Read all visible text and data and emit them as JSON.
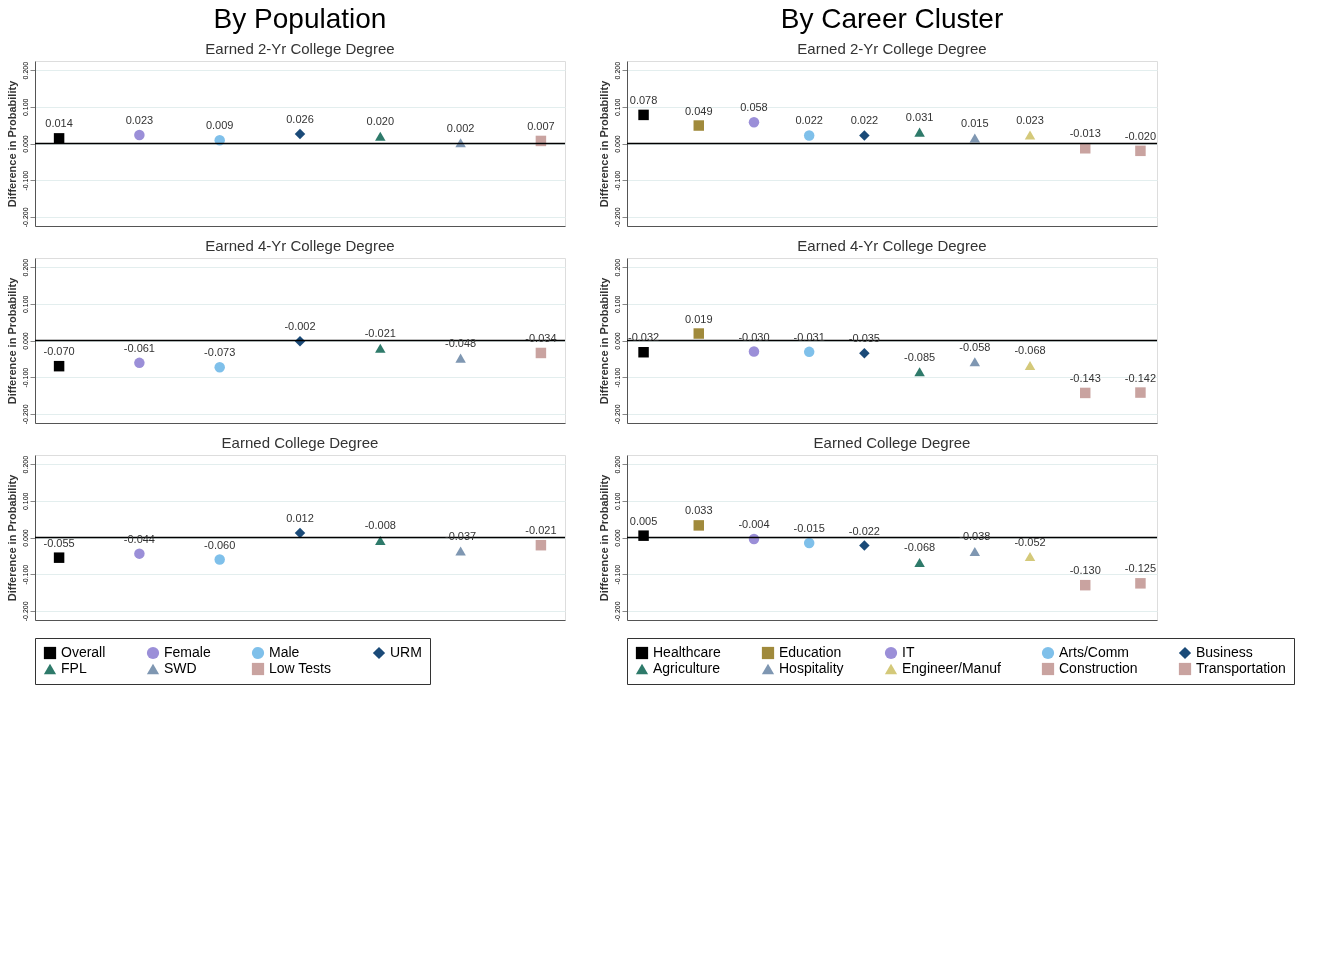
{
  "chart_data": [
    {
      "type": "scatter",
      "title": "By Population",
      "subtitle": "Earned 2-Yr College Degree",
      "ylabel": "Difference in Probability",
      "categories": [
        null,
        null,
        null,
        null,
        null,
        null,
        null
      ],
      "ylim": [
        -0.225,
        0.225
      ],
      "yticks": [
        {
          "value": -0.2,
          "label": "-0.200"
        },
        {
          "value": -0.1,
          "label": "-0.100"
        },
        {
          "value": 0,
          "label": "0.000"
        },
        {
          "value": 0.1,
          "label": "0.100"
        },
        {
          "value": 0.2,
          "label": "0.200"
        }
      ],
      "grid": "y",
      "tick_labels": "y",
      "legend": false,
      "ref_lines": [
        {
          "axis": "y",
          "value": 0,
          "color": "#000000"
        }
      ],
      "series": [
        {
          "color": "#000000",
          "marker": "square",
          "values": [
            0.014,
            null,
            null,
            null,
            null,
            null,
            null
          ],
          "value_labels": [
            "0.014",
            null,
            null,
            null,
            null,
            null,
            null
          ]
        },
        {
          "color": "#9b8fd8",
          "marker": "circle",
          "values": [
            null,
            0.023,
            null,
            null,
            null,
            null,
            null
          ],
          "value_labels": [
            null,
            "0.023",
            null,
            null,
            null,
            null,
            null
          ]
        },
        {
          "color": "#7fc0ea",
          "marker": "circle",
          "values": [
            null,
            null,
            0.009,
            null,
            null,
            null,
            null
          ],
          "value_labels": [
            null,
            null,
            "0.009",
            null,
            null,
            null,
            null
          ]
        },
        {
          "color": "#1a4a78",
          "marker": "diamond",
          "values": [
            null,
            null,
            null,
            0.026,
            null,
            null,
            null
          ],
          "value_labels": [
            null,
            null,
            null,
            "0.026",
            null,
            null,
            null
          ]
        },
        {
          "color": "#2e7a6a",
          "marker": "triangle",
          "values": [
            null,
            null,
            null,
            null,
            0.02,
            null,
            null
          ],
          "value_labels": [
            null,
            null,
            null,
            null,
            "0.020",
            null,
            null
          ]
        },
        {
          "color": "#7f97b2",
          "marker": "triangle",
          "values": [
            null,
            null,
            null,
            null,
            null,
            0.002,
            null
          ],
          "value_labels": [
            null,
            null,
            null,
            null,
            null,
            "0.002",
            null
          ]
        },
        {
          "color": "#c9a3a0",
          "marker": "square",
          "values": [
            null,
            null,
            null,
            null,
            null,
            null,
            0.007
          ],
          "value_labels": [
            null,
            null,
            null,
            null,
            null,
            null,
            "0.007"
          ]
        }
      ]
    },
    {
      "type": "scatter",
      "title": "Earned 4-Yr College Degree",
      "ylabel": "Difference in Probability",
      "categories": [
        null,
        null,
        null,
        null,
        null,
        null,
        null
      ],
      "ylim": [
        -0.225,
        0.225
      ],
      "yticks": [
        {
          "value": -0.2,
          "label": "-0.200"
        },
        {
          "value": -0.1,
          "label": "-0.100"
        },
        {
          "value": 0,
          "label": "0.000"
        },
        {
          "value": 0.1,
          "label": "0.100"
        },
        {
          "value": 0.2,
          "label": "0.200"
        }
      ],
      "grid": "y",
      "tick_labels": "y",
      "legend": false,
      "ref_lines": [
        {
          "axis": "y",
          "value": 0,
          "color": "#000000"
        }
      ],
      "series": [
        {
          "color": "#000000",
          "marker": "square",
          "values": [
            -0.07,
            null,
            null,
            null,
            null,
            null,
            null
          ],
          "value_labels": [
            "-0.070",
            null,
            null,
            null,
            null,
            null,
            null
          ]
        },
        {
          "color": "#9b8fd8",
          "marker": "circle",
          "values": [
            null,
            -0.061,
            null,
            null,
            null,
            null,
            null
          ],
          "value_labels": [
            null,
            "-0.061",
            null,
            null,
            null,
            null,
            null
          ]
        },
        {
          "color": "#7fc0ea",
          "marker": "circle",
          "values": [
            null,
            null,
            -0.073,
            null,
            null,
            null,
            null
          ],
          "value_labels": [
            null,
            null,
            "-0.073",
            null,
            null,
            null,
            null
          ]
        },
        {
          "color": "#1a4a78",
          "marker": "diamond",
          "values": [
            null,
            null,
            null,
            -0.002,
            null,
            null,
            null
          ],
          "value_labels": [
            null,
            null,
            null,
            "-0.002",
            null,
            null,
            null
          ]
        },
        {
          "color": "#2e7a6a",
          "marker": "triangle",
          "values": [
            null,
            null,
            null,
            null,
            -0.021,
            null,
            null
          ],
          "value_labels": [
            null,
            null,
            null,
            null,
            "-0.021",
            null,
            null
          ]
        },
        {
          "color": "#7f97b2",
          "marker": "triangle",
          "values": [
            null,
            null,
            null,
            null,
            null,
            -0.048,
            null
          ],
          "value_labels": [
            null,
            null,
            null,
            null,
            null,
            "-0.048",
            null
          ]
        },
        {
          "color": "#c9a3a0",
          "marker": "square",
          "values": [
            null,
            null,
            null,
            null,
            null,
            null,
            -0.034
          ],
          "value_labels": [
            null,
            null,
            null,
            null,
            null,
            null,
            "-0.034"
          ]
        }
      ]
    },
    {
      "type": "scatter",
      "title": "Earned College Degree",
      "ylabel": "Difference in Probability",
      "categories": [
        null,
        null,
        null,
        null,
        null,
        null,
        null
      ],
      "ylim": [
        -0.225,
        0.225
      ],
      "yticks": [
        {
          "value": -0.2,
          "label": "-0.200"
        },
        {
          "value": -0.1,
          "label": "-0.100"
        },
        {
          "value": 0,
          "label": "0.000"
        },
        {
          "value": 0.1,
          "label": "0.100"
        },
        {
          "value": 0.2,
          "label": "0.200"
        }
      ],
      "grid": "y",
      "tick_labels": "y",
      "legend": "bottom",
      "ref_lines": [
        {
          "axis": "y",
          "value": 0,
          "color": "#000000"
        }
      ],
      "series": [
        {
          "name": "Overall",
          "color": "#000000",
          "marker": "square",
          "values": [
            -0.055,
            null,
            null,
            null,
            null,
            null,
            null
          ],
          "value_labels": [
            "-0.055",
            null,
            null,
            null,
            null,
            null,
            null
          ]
        },
        {
          "name": "Female",
          "color": "#9b8fd8",
          "marker": "circle",
          "values": [
            null,
            -0.044,
            null,
            null,
            null,
            null,
            null
          ],
          "value_labels": [
            null,
            "-0.044",
            null,
            null,
            null,
            null,
            null
          ]
        },
        {
          "name": "Male",
          "color": "#7fc0ea",
          "marker": "circle",
          "values": [
            null,
            null,
            -0.06,
            null,
            null,
            null,
            null
          ],
          "value_labels": [
            null,
            null,
            "-0.060",
            null,
            null,
            null,
            null
          ]
        },
        {
          "name": "URM",
          "color": "#1a4a78",
          "marker": "diamond",
          "values": [
            null,
            null,
            null,
            0.012,
            null,
            null,
            null
          ],
          "value_labels": [
            null,
            null,
            null,
            "0.012",
            null,
            null,
            null
          ]
        },
        {
          "name": "FPL",
          "color": "#2e7a6a",
          "marker": "triangle",
          "values": [
            null,
            null,
            null,
            null,
            -0.008,
            null,
            null
          ],
          "value_labels": [
            null,
            null,
            null,
            null,
            "-0.008",
            null,
            null
          ]
        },
        {
          "name": "SWD",
          "color": "#7f97b2",
          "marker": "triangle",
          "values": [
            null,
            null,
            null,
            null,
            null,
            -0.037,
            null
          ],
          "value_labels": [
            null,
            null,
            null,
            null,
            null,
            "-0.037",
            null
          ]
        },
        {
          "name": "Low Tests",
          "color": "#c9a3a0",
          "marker": "square",
          "values": [
            null,
            null,
            null,
            null,
            null,
            null,
            -0.021
          ],
          "value_labels": [
            null,
            null,
            null,
            null,
            null,
            null,
            "-0.021"
          ]
        }
      ]
    },
    {
      "type": "scatter",
      "title": "By Career Cluster",
      "subtitle": "Earned 2-Yr College Degree",
      "ylabel": "Difference in Probability",
      "categories": [
        null,
        null,
        null,
        null,
        null,
        null,
        null,
        null,
        null,
        null
      ],
      "ylim": [
        -0.225,
        0.225
      ],
      "yticks": [
        {
          "value": -0.2,
          "label": "-0.200"
        },
        {
          "value": -0.1,
          "label": "-0.100"
        },
        {
          "value": 0,
          "label": "0.000"
        },
        {
          "value": 0.1,
          "label": "0.100"
        },
        {
          "value": 0.2,
          "label": "0.200"
        }
      ],
      "grid": "y",
      "tick_labels": "y",
      "legend": false,
      "ref_lines": [
        {
          "axis": "y",
          "value": 0,
          "color": "#000000"
        }
      ],
      "series": [
        {
          "color": "#000000",
          "marker": "square",
          "values": [
            0.078,
            null,
            null,
            null,
            null,
            null,
            null,
            null,
            null,
            null
          ],
          "value_labels": [
            "0.078",
            null,
            null,
            null,
            null,
            null,
            null,
            null,
            null,
            null
          ]
        },
        {
          "color": "#a08a3c",
          "marker": "square",
          "values": [
            null,
            0.049,
            null,
            null,
            null,
            null,
            null,
            null,
            null,
            null
          ],
          "value_labels": [
            null,
            "0.049",
            null,
            null,
            null,
            null,
            null,
            null,
            null,
            null
          ]
        },
        {
          "color": "#9b8fd8",
          "marker": "circle",
          "values": [
            null,
            null,
            0.058,
            null,
            null,
            null,
            null,
            null,
            null,
            null
          ],
          "value_labels": [
            null,
            null,
            "0.058",
            null,
            null,
            null,
            null,
            null,
            null,
            null
          ]
        },
        {
          "color": "#7fc0ea",
          "marker": "circle",
          "values": [
            null,
            null,
            null,
            0.022,
            null,
            null,
            null,
            null,
            null,
            null
          ],
          "value_labels": [
            null,
            null,
            null,
            "0.022",
            null,
            null,
            null,
            null,
            null,
            null
          ]
        },
        {
          "color": "#1a4a78",
          "marker": "diamond",
          "values": [
            null,
            null,
            null,
            null,
            0.022,
            null,
            null,
            null,
            null,
            null
          ],
          "value_labels": [
            null,
            null,
            null,
            null,
            "0.022",
            null,
            null,
            null,
            null,
            null
          ]
        },
        {
          "color": "#2e7a6a",
          "marker": "triangle",
          "values": [
            null,
            null,
            null,
            null,
            null,
            0.031,
            null,
            null,
            null,
            null
          ],
          "value_labels": [
            null,
            null,
            null,
            null,
            null,
            "0.031",
            null,
            null,
            null,
            null
          ]
        },
        {
          "color": "#7f97b2",
          "marker": "triangle",
          "values": [
            null,
            null,
            null,
            null,
            null,
            null,
            0.015,
            null,
            null,
            null
          ],
          "value_labels": [
            null,
            null,
            null,
            null,
            null,
            null,
            "0.015",
            null,
            null,
            null
          ]
        },
        {
          "color": "#d4c97a",
          "marker": "triangle",
          "values": [
            null,
            null,
            null,
            null,
            null,
            null,
            null,
            0.023,
            null,
            null
          ],
          "value_labels": [
            null,
            null,
            null,
            null,
            null,
            null,
            null,
            "0.023",
            null,
            null
          ]
        },
        {
          "color": "#c9a3a0",
          "marker": "square",
          "values": [
            null,
            null,
            null,
            null,
            null,
            null,
            null,
            null,
            -0.013,
            null
          ],
          "value_labels": [
            null,
            null,
            null,
            null,
            null,
            null,
            null,
            null,
            "-0.013",
            null
          ]
        },
        {
          "color": "#c9a3a0",
          "marker": "square",
          "values": [
            null,
            null,
            null,
            null,
            null,
            null,
            null,
            null,
            null,
            -0.02
          ],
          "value_labels": [
            null,
            null,
            null,
            null,
            null,
            null,
            null,
            null,
            null,
            "-0.020"
          ]
        }
      ]
    },
    {
      "type": "scatter",
      "title": "Earned 4-Yr College Degree",
      "ylabel": "Difference in Probability",
      "categories": [
        null,
        null,
        null,
        null,
        null,
        null,
        null,
        null,
        null,
        null
      ],
      "ylim": [
        -0.225,
        0.225
      ],
      "yticks": [
        {
          "value": -0.2,
          "label": "-0.200"
        },
        {
          "value": -0.1,
          "label": "-0.100"
        },
        {
          "value": 0,
          "label": "0.000"
        },
        {
          "value": 0.1,
          "label": "0.100"
        },
        {
          "value": 0.2,
          "label": "0.200"
        }
      ],
      "grid": "y",
      "tick_labels": "y",
      "legend": false,
      "ref_lines": [
        {
          "axis": "y",
          "value": 0,
          "color": "#000000"
        }
      ],
      "series": [
        {
          "color": "#000000",
          "marker": "square",
          "values": [
            -0.032,
            null,
            null,
            null,
            null,
            null,
            null,
            null,
            null,
            null
          ],
          "value_labels": [
            "-0.032",
            null,
            null,
            null,
            null,
            null,
            null,
            null,
            null,
            null
          ]
        },
        {
          "color": "#a08a3c",
          "marker": "square",
          "values": [
            null,
            0.019,
            null,
            null,
            null,
            null,
            null,
            null,
            null,
            null
          ],
          "value_labels": [
            null,
            "0.019",
            null,
            null,
            null,
            null,
            null,
            null,
            null,
            null
          ]
        },
        {
          "color": "#9b8fd8",
          "marker": "circle",
          "values": [
            null,
            null,
            -0.03,
            null,
            null,
            null,
            null,
            null,
            null,
            null
          ],
          "value_labels": [
            null,
            null,
            "-0.030",
            null,
            null,
            null,
            null,
            null,
            null,
            null
          ]
        },
        {
          "color": "#7fc0ea",
          "marker": "circle",
          "values": [
            null,
            null,
            null,
            -0.031,
            null,
            null,
            null,
            null,
            null,
            null
          ],
          "value_labels": [
            null,
            null,
            null,
            "-0.031",
            null,
            null,
            null,
            null,
            null,
            null
          ]
        },
        {
          "color": "#1a4a78",
          "marker": "diamond",
          "values": [
            null,
            null,
            null,
            null,
            -0.035,
            null,
            null,
            null,
            null,
            null
          ],
          "value_labels": [
            null,
            null,
            null,
            null,
            "-0.035",
            null,
            null,
            null,
            null,
            null
          ]
        },
        {
          "color": "#2e7a6a",
          "marker": "triangle",
          "values": [
            null,
            null,
            null,
            null,
            null,
            -0.085,
            null,
            null,
            null,
            null
          ],
          "value_labels": [
            null,
            null,
            null,
            null,
            null,
            "-0.085",
            null,
            null,
            null,
            null
          ]
        },
        {
          "color": "#7f97b2",
          "marker": "triangle",
          "values": [
            null,
            null,
            null,
            null,
            null,
            null,
            -0.058,
            null,
            null,
            null
          ],
          "value_labels": [
            null,
            null,
            null,
            null,
            null,
            null,
            "-0.058",
            null,
            null,
            null
          ]
        },
        {
          "color": "#d4c97a",
          "marker": "triangle",
          "values": [
            null,
            null,
            null,
            null,
            null,
            null,
            null,
            -0.068,
            null,
            null
          ],
          "value_labels": [
            null,
            null,
            null,
            null,
            null,
            null,
            null,
            "-0.068",
            null,
            null
          ]
        },
        {
          "color": "#c9a3a0",
          "marker": "square",
          "values": [
            null,
            null,
            null,
            null,
            null,
            null,
            null,
            null,
            -0.143,
            null
          ],
          "value_labels": [
            null,
            null,
            null,
            null,
            null,
            null,
            null,
            null,
            "-0.143",
            null
          ]
        },
        {
          "color": "#c9a3a0",
          "marker": "square",
          "values": [
            null,
            null,
            null,
            null,
            null,
            null,
            null,
            null,
            null,
            -0.142
          ],
          "value_labels": [
            null,
            null,
            null,
            null,
            null,
            null,
            null,
            null,
            null,
            "-0.142"
          ]
        }
      ]
    },
    {
      "type": "scatter",
      "title": "Earned College Degree",
      "ylabel": "Difference in Probability",
      "categories": [
        null,
        null,
        null,
        null,
        null,
        null,
        null,
        null,
        null,
        null
      ],
      "ylim": [
        -0.225,
        0.225
      ],
      "yticks": [
        {
          "value": -0.2,
          "label": "-0.200"
        },
        {
          "value": -0.1,
          "label": "-0.100"
        },
        {
          "value": 0,
          "label": "0.000"
        },
        {
          "value": 0.1,
          "label": "0.100"
        },
        {
          "value": 0.2,
          "label": "0.200"
        }
      ],
      "grid": "y",
      "tick_labels": "y",
      "legend": "bottom",
      "ref_lines": [
        {
          "axis": "y",
          "value": 0,
          "color": "#000000"
        }
      ],
      "series": [
        {
          "name": "Healthcare",
          "color": "#000000",
          "marker": "square",
          "values": [
            0.005,
            null,
            null,
            null,
            null,
            null,
            null,
            null,
            null,
            null
          ],
          "value_labels": [
            "0.005",
            null,
            null,
            null,
            null,
            null,
            null,
            null,
            null,
            null
          ]
        },
        {
          "name": "Education",
          "color": "#a08a3c",
          "marker": "square",
          "values": [
            null,
            0.033,
            null,
            null,
            null,
            null,
            null,
            null,
            null,
            null
          ],
          "value_labels": [
            null,
            "0.033",
            null,
            null,
            null,
            null,
            null,
            null,
            null,
            null
          ]
        },
        {
          "name": "IT",
          "color": "#9b8fd8",
          "marker": "circle",
          "values": [
            null,
            null,
            -0.004,
            null,
            null,
            null,
            null,
            null,
            null,
            null
          ],
          "value_labels": [
            null,
            null,
            "-0.004",
            null,
            null,
            null,
            null,
            null,
            null,
            null
          ]
        },
        {
          "name": "Arts/Comm",
          "color": "#7fc0ea",
          "marker": "circle",
          "values": [
            null,
            null,
            null,
            -0.015,
            null,
            null,
            null,
            null,
            null,
            null
          ],
          "value_labels": [
            null,
            null,
            null,
            "-0.015",
            null,
            null,
            null,
            null,
            null,
            null
          ]
        },
        {
          "name": "Business",
          "color": "#1a4a78",
          "marker": "diamond",
          "values": [
            null,
            null,
            null,
            null,
            -0.022,
            null,
            null,
            null,
            null,
            null
          ],
          "value_labels": [
            null,
            null,
            null,
            null,
            "-0.022",
            null,
            null,
            null,
            null,
            null
          ]
        },
        {
          "name": "Agriculture",
          "color": "#2e7a6a",
          "marker": "triangle",
          "values": [
            null,
            null,
            null,
            null,
            null,
            -0.068,
            null,
            null,
            null,
            null
          ],
          "value_labels": [
            null,
            null,
            null,
            null,
            null,
            "-0.068",
            null,
            null,
            null,
            null
          ]
        },
        {
          "name": "Hospitality",
          "color": "#7f97b2",
          "marker": "triangle",
          "values": [
            null,
            null,
            null,
            null,
            null,
            null,
            -0.038,
            null,
            null,
            null
          ],
          "value_labels": [
            null,
            null,
            null,
            null,
            null,
            null,
            "-0.038",
            null,
            null,
            null
          ]
        },
        {
          "name": "Engineer/Manuf",
          "color": "#d4c97a",
          "marker": "triangle",
          "values": [
            null,
            null,
            null,
            null,
            null,
            null,
            null,
            -0.052,
            null,
            null
          ],
          "value_labels": [
            null,
            null,
            null,
            null,
            null,
            null,
            null,
            "-0.052",
            null,
            null
          ]
        },
        {
          "name": "Construction",
          "color": "#c9a3a0",
          "marker": "square",
          "values": [
            null,
            null,
            null,
            null,
            null,
            null,
            null,
            null,
            -0.13,
            null
          ],
          "value_labels": [
            null,
            null,
            null,
            null,
            null,
            null,
            null,
            null,
            "-0.130",
            null
          ]
        },
        {
          "name": "Transportation",
          "color": "#c9a3a0",
          "marker": "square",
          "values": [
            null,
            null,
            null,
            null,
            null,
            null,
            null,
            null,
            null,
            -0.125
          ],
          "value_labels": [
            null,
            null,
            null,
            null,
            null,
            null,
            null,
            null,
            null,
            "-0.125"
          ]
        }
      ]
    }
  ]
}
